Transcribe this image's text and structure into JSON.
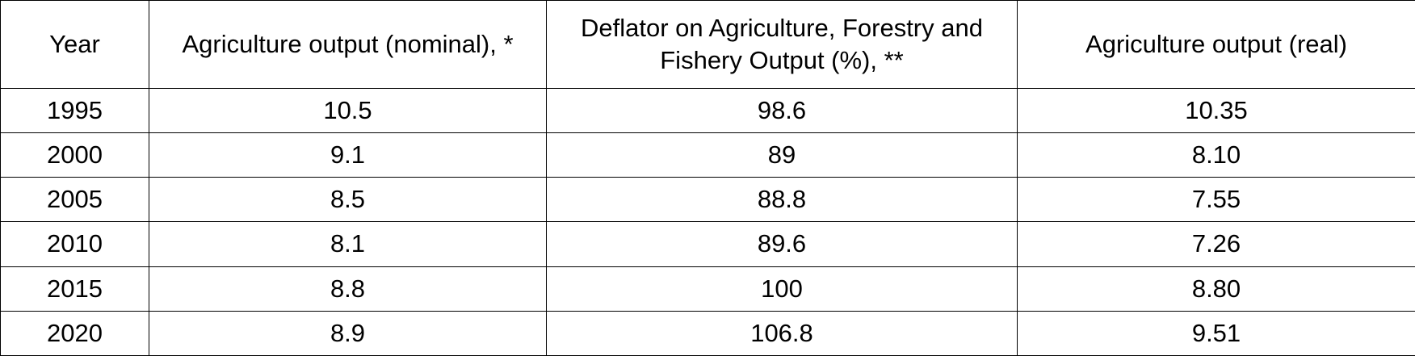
{
  "table": {
    "headers": [
      "Year",
      "Agriculture output (nominal), *",
      "Deflator on Agriculture, Forestry and Fishery Output (%), **",
      "Agriculture output (real)"
    ],
    "rows": [
      [
        "1995",
        "10.5",
        "98.6",
        "10.35"
      ],
      [
        "2000",
        "9.1",
        "89",
        "8.10"
      ],
      [
        "2005",
        "8.5",
        "88.8",
        "7.55"
      ],
      [
        "2010",
        "8.1",
        "89.6",
        "7.26"
      ],
      [
        "2015",
        "8.8",
        "100",
        "8.80"
      ],
      [
        "2020",
        "8.9",
        "106.8",
        "9.51"
      ]
    ]
  }
}
